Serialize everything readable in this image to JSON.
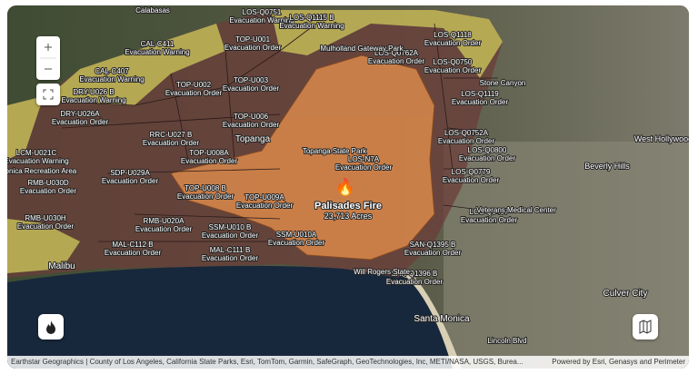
{
  "zones": [
    {
      "id": "LOS-Q0751",
      "status": "Evacuation Warning"
    },
    {
      "id": "LOS-Q1115 B",
      "status": "Evacuation Warning"
    },
    {
      "id": "CAL-C411",
      "status": "Evacuation Warning"
    },
    {
      "id": "TOP-U001",
      "status": "Evacuation Order"
    },
    {
      "id": "LOS-Q0762A",
      "status": "Evacuation Order"
    },
    {
      "id": "LOS-Q1118",
      "status": "Evacuation Order"
    },
    {
      "id": "CAL-C407",
      "status": "Evacuation Warning"
    },
    {
      "id": "TOP-U002",
      "status": "Evacuation Order"
    },
    {
      "id": "TOP-U003",
      "status": "Evacuation Order"
    },
    {
      "id": "LOS-Q0750",
      "status": "Evacuation Order"
    },
    {
      "id": "DRY-U026 B",
      "status": "Evacuation Warning"
    },
    {
      "id": "LOS-Q1119",
      "status": "Evacuation Order"
    },
    {
      "id": "DRY-U026A",
      "status": "Evacuation Order"
    },
    {
      "id": "TOP-U006",
      "status": "Evacuation Order"
    },
    {
      "id": "RRC-U027 B",
      "status": "Evacuation Order"
    },
    {
      "id": "LOS-Q0752A",
      "status": "Evacuation Order"
    },
    {
      "id": "LOS-Q0800",
      "status": "Evacuation Order"
    },
    {
      "id": "LCM-U021C",
      "status": "Evacuation Warning"
    },
    {
      "id": "TOP-U008A",
      "status": "Evacuation Order"
    },
    {
      "id": "LOS-N7A",
      "status": "Evacuation Order"
    },
    {
      "id": "LOS-Q0779",
      "status": "Evacuation Order"
    },
    {
      "id": "SDP-U029A",
      "status": "Evacuation Order"
    },
    {
      "id": "RMB-U030D",
      "status": "Evacuation Order"
    },
    {
      "id": "TOP-U008 B",
      "status": "Evacuation Order"
    },
    {
      "id": "TOP-U009A",
      "status": "Evacuation Order"
    },
    {
      "id": "LOS-Q0407",
      "status": "Evacuation Order"
    },
    {
      "id": "RMB-U030H",
      "status": "Evacuation Order"
    },
    {
      "id": "RMB-U020A",
      "status": "Evacuation Order"
    },
    {
      "id": "SSM-U010 B",
      "status": "Evacuation Order"
    },
    {
      "id": "SSM-U010A",
      "status": "Evacuation Order"
    },
    {
      "id": "SAN-Q1395 B",
      "status": "Evacuation Order"
    },
    {
      "id": "MAL-C112 B",
      "status": "Evacuation Order"
    },
    {
      "id": "MAL-C111 B",
      "status": "Evacuation Order"
    },
    {
      "id": "SAN-Q1396 B",
      "status": "Evacuation Order"
    }
  ],
  "places": [
    "Calabasas",
    "Mulholland Gateway Park",
    "Topanga",
    "Topanga State Park",
    "Santa Monica Recreation Area",
    "Stone Canyon",
    "West Hollywood",
    "Beverly Hills",
    "Veterans Medical Center",
    "Malibu",
    "Will Rogers State",
    "Santa Monica",
    "Culver City",
    "Lincoln Blvd"
  ],
  "fire": {
    "name": "Palisades Fire",
    "area": "23,713 Acres"
  },
  "attribution": "Earthstar Geographics | County of Los Angeles, California State Parks, Esri, TomTom, Garmin, SafeGraph, GeoTechnologies, Inc, METI/NASA, USGS, Burea...",
  "powered_by": "Powered by Esri, Genasys and Perimeter"
}
